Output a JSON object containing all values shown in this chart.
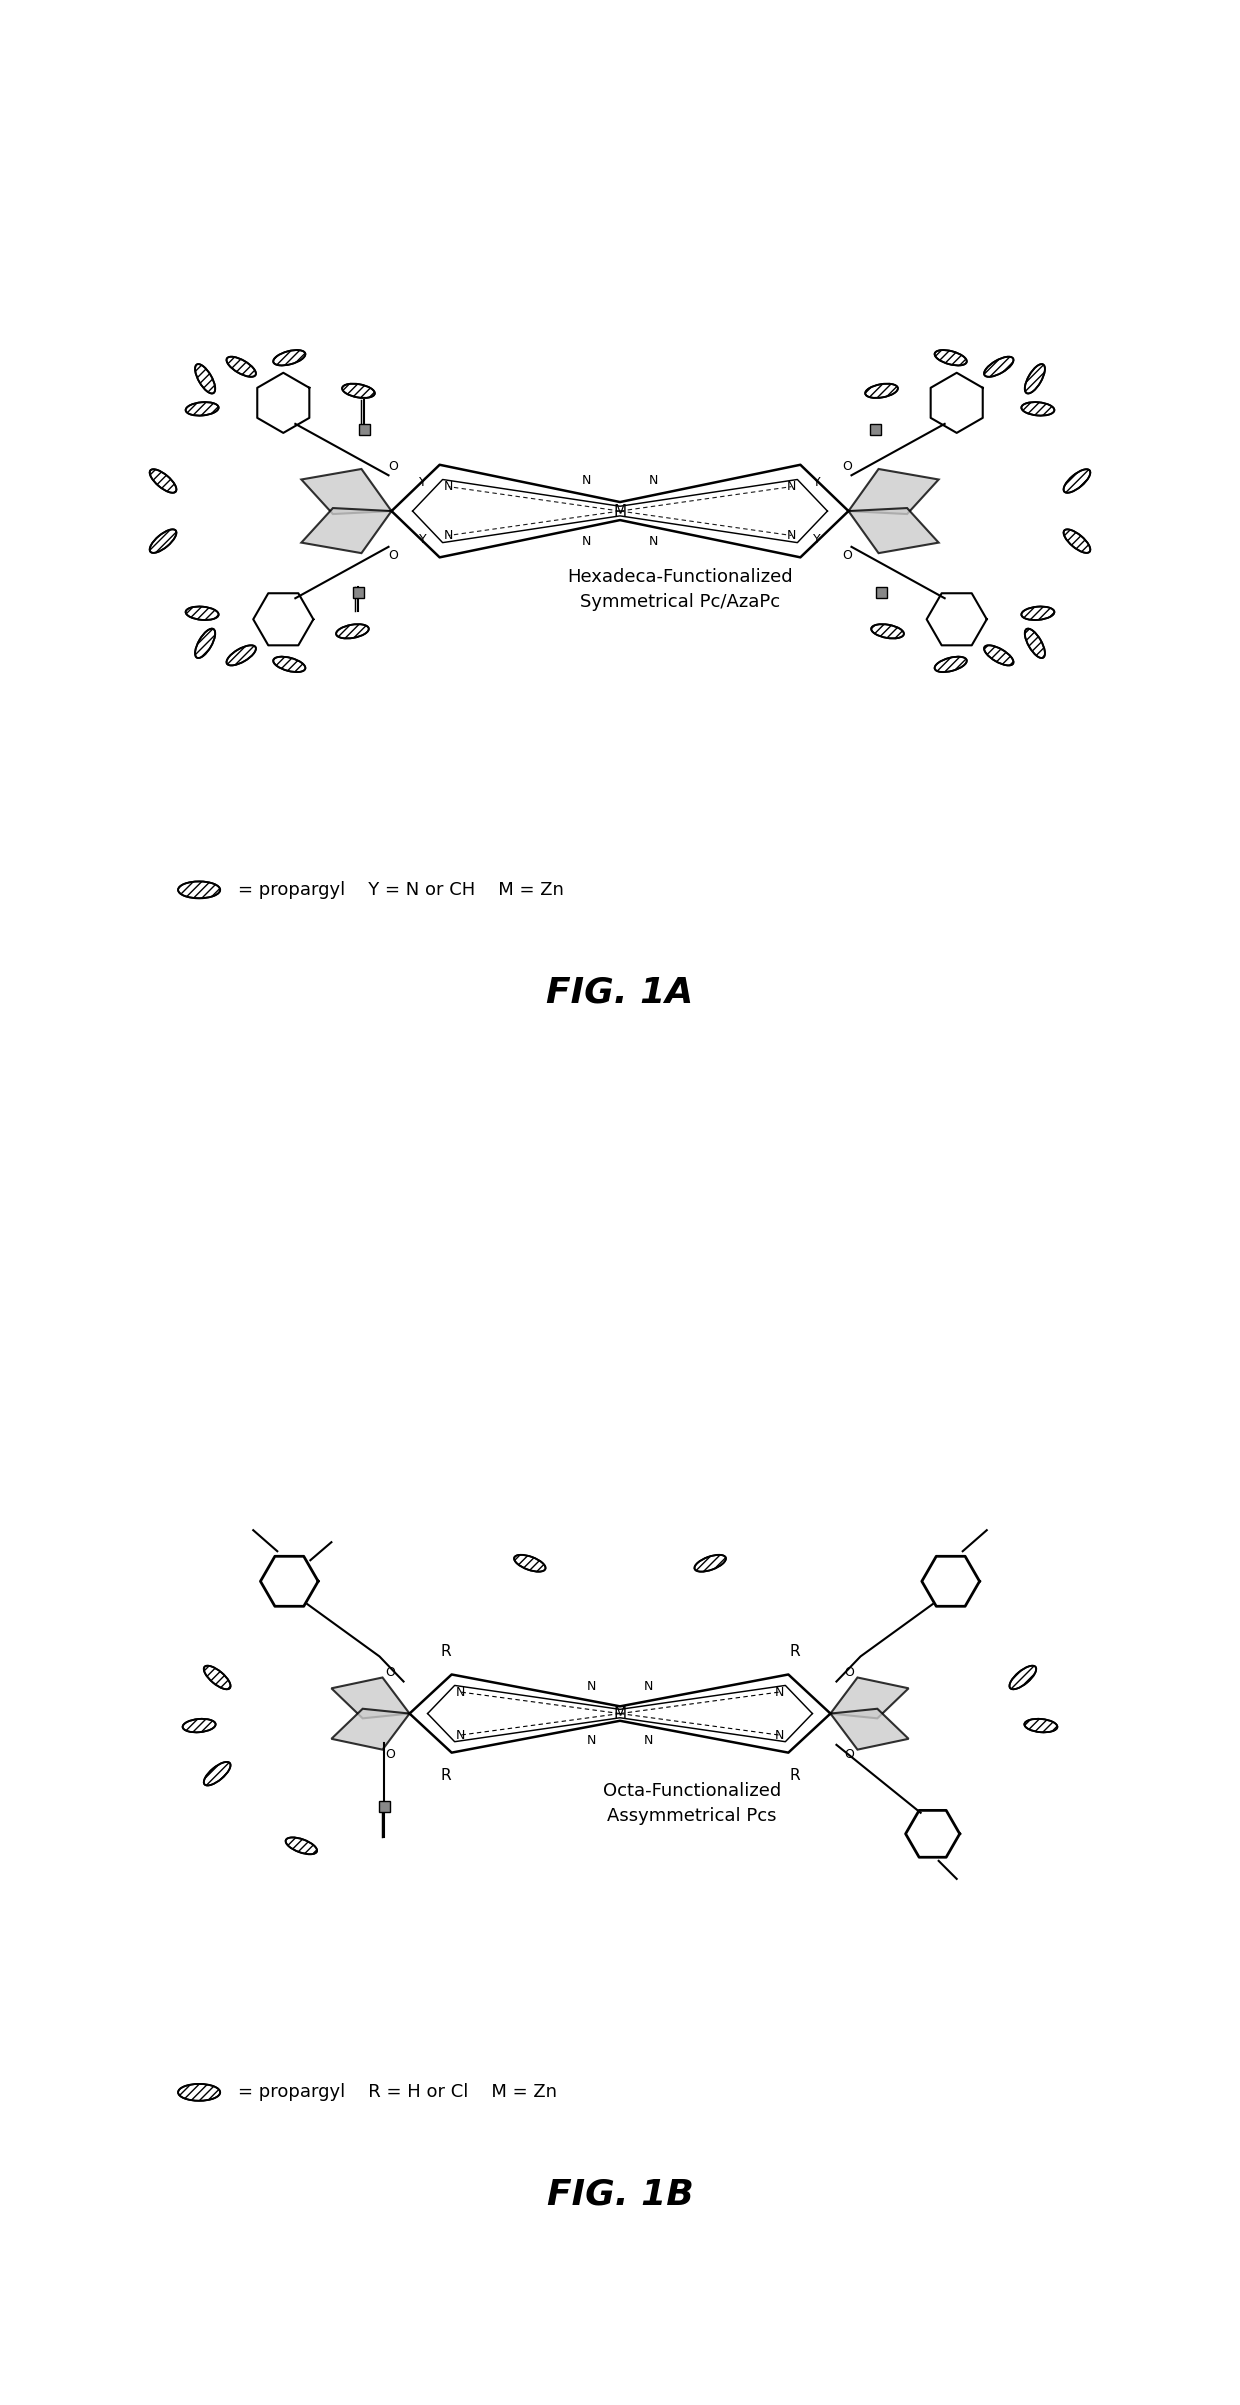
{
  "background_color": "#ffffff",
  "fig1a": {
    "title": "FIG. 1A",
    "label_text": "= propargyl    Y = N or CH    M = Zn",
    "compound_label": "Hexadeca-Functionalized\nSymmetrical Pc/AzaPc"
  },
  "fig1b": {
    "title": "FIG. 1B",
    "label_text": "= propargyl    R = H or Cl    M = Zn",
    "compound_label": "Octa-Functionalized\nAssymmetrical Pcs"
  }
}
